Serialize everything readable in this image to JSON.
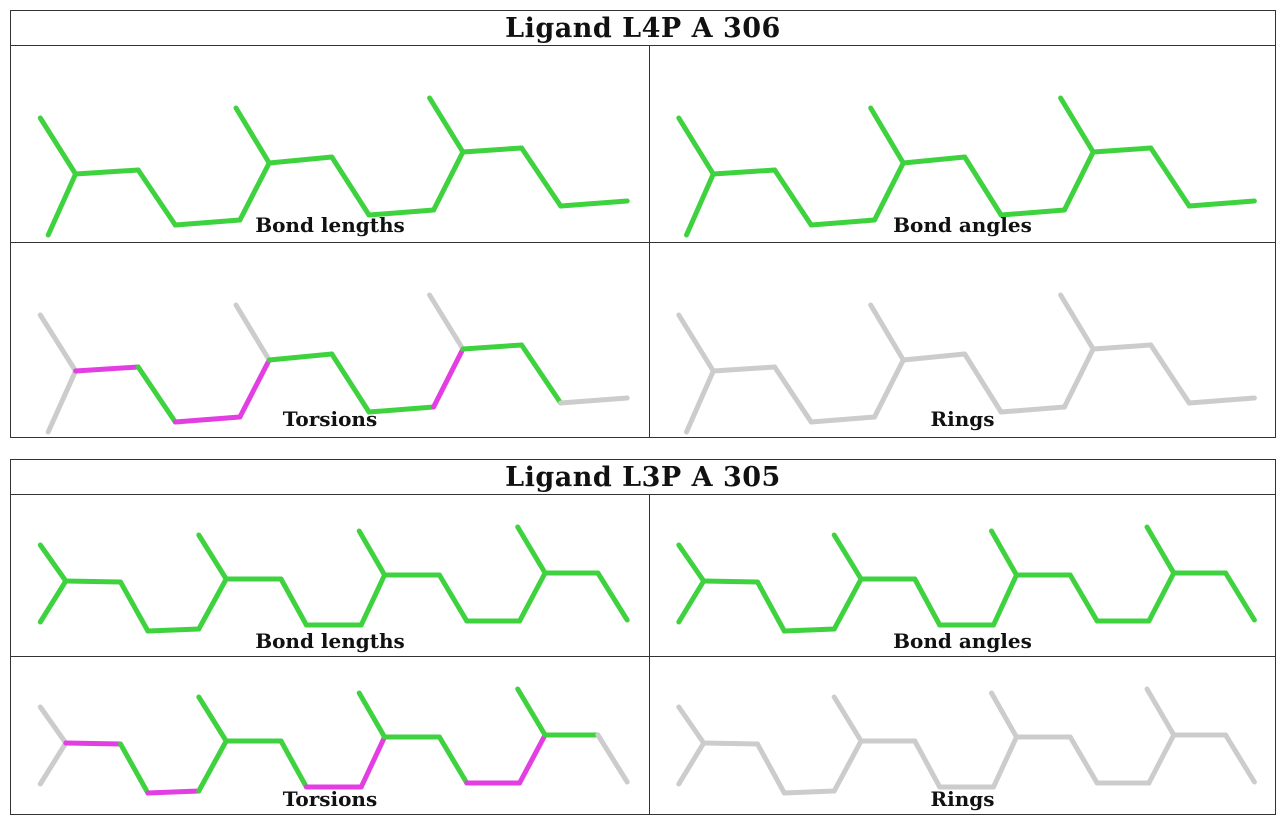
{
  "ligands": [
    {
      "title": "Ligand L4P A 306",
      "panels": [
        {
          "caption": "Bond lengths",
          "coloring": "all-green"
        },
        {
          "caption": "Bond angles",
          "coloring": "all-green"
        },
        {
          "caption": "Torsions",
          "coloring": "torsions"
        },
        {
          "caption": "Rings",
          "coloring": "all-gray"
        }
      ]
    },
    {
      "title": "Ligand L3P A 305",
      "panels": [
        {
          "caption": "Bond lengths",
          "coloring": "all-green"
        },
        {
          "caption": "Bond angles",
          "coloring": "all-green"
        },
        {
          "caption": "Torsions",
          "coloring": "torsions"
        },
        {
          "caption": "Rings",
          "coloring": "all-gray"
        }
      ]
    }
  ],
  "colors": {
    "green": "#3fd23f",
    "magenta": "#e23ee2",
    "gray": "#cccccc",
    "border": "#333333"
  }
}
